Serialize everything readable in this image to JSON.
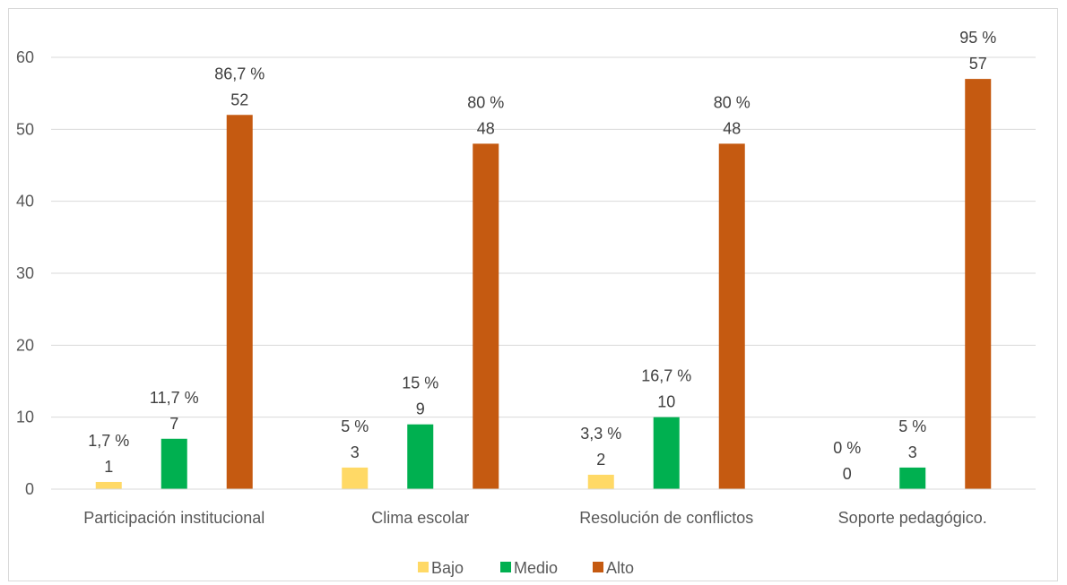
{
  "chart_data": {
    "type": "bar",
    "title": "",
    "xlabel": "",
    "ylabel": "",
    "ylim": [
      0,
      60
    ],
    "yticks": [
      0,
      10,
      20,
      30,
      40,
      50,
      60
    ],
    "grid": true,
    "legend_position": "bottom",
    "categories": [
      "Participación institucional",
      "Clima escolar",
      "Resolución de conflictos",
      "Soporte pedagógico."
    ],
    "series": [
      {
        "name": "Bajo",
        "color": "#FFD966",
        "values": [
          1,
          3,
          2,
          0
        ],
        "pct_labels": [
          "1,7 %",
          "5 %",
          "3,3 %",
          "0 %"
        ]
      },
      {
        "name": "Medio",
        "color": "#00B050",
        "values": [
          7,
          9,
          10,
          3
        ],
        "pct_labels": [
          "11,7 %",
          "15 %",
          "16,7 %",
          "5 %"
        ]
      },
      {
        "name": "Alto",
        "color": "#C55A11",
        "values": [
          52,
          48,
          48,
          57
        ],
        "pct_labels": [
          "86,7 %",
          "80 %",
          "80 %",
          "95 %"
        ]
      }
    ]
  }
}
